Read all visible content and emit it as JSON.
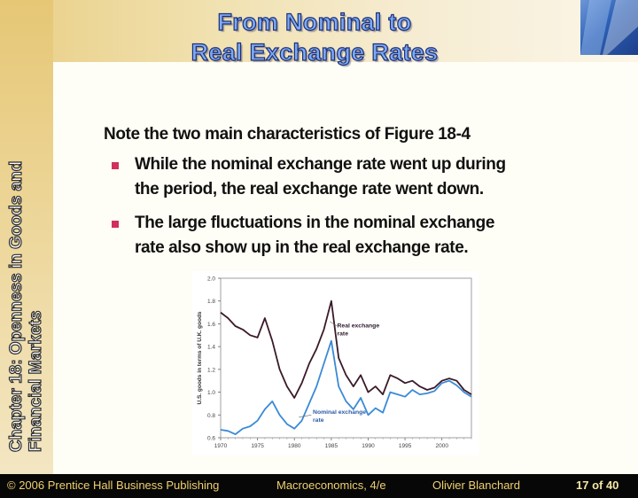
{
  "title": {
    "line1": "From Nominal to",
    "line2": "Real Exchange Rates"
  },
  "side_label": "Chapter 18: Openness in Goods and Financial Markets",
  "content": {
    "intro": "Note the two main characteristics of Figure 18-4",
    "bullets": [
      {
        "line1": "While the nominal exchange rate went up during",
        "line2": "the period, the real exchange rate went down."
      },
      {
        "line1": "The large fluctuations in the nominal exchange",
        "line2": "rate also show up in the real exchange rate."
      }
    ],
    "bullet_color": "#d0305a"
  },
  "chart_data": {
    "type": "line",
    "ylabel": "U.S. goods in terms of U.K. goods",
    "ylim": [
      0.6,
      2.0
    ],
    "y_ticks": [
      "0.6",
      "0.8",
      "1.0",
      "1.2",
      "1.4",
      "1.6",
      "1.8",
      "2.0"
    ],
    "xlim": [
      1970,
      2004
    ],
    "x_ticks": [
      "1970",
      "1975",
      "1980",
      "1985",
      "1990",
      "1995",
      "2000"
    ],
    "series": [
      {
        "name": "Real exchange rate",
        "color": "#3a1a2a",
        "x": [
          1970,
          1971,
          1972,
          1973,
          1974,
          1975,
          1976,
          1977,
          1978,
          1979,
          1980,
          1981,
          1982,
          1983,
          1984,
          1985,
          1986,
          1987,
          1988,
          1989,
          1990,
          1991,
          1992,
          1993,
          1994,
          1995,
          1996,
          1997,
          1998,
          1999,
          2000,
          2001,
          2002,
          2003,
          2004
        ],
        "values": [
          1.7,
          1.65,
          1.58,
          1.55,
          1.5,
          1.48,
          1.65,
          1.45,
          1.2,
          1.05,
          0.95,
          1.08,
          1.25,
          1.38,
          1.55,
          1.8,
          1.3,
          1.15,
          1.05,
          1.15,
          1.0,
          1.05,
          0.98,
          1.15,
          1.12,
          1.08,
          1.1,
          1.05,
          1.02,
          1.04,
          1.1,
          1.12,
          1.1,
          1.02,
          0.98
        ]
      },
      {
        "name": "Nominal exchange rate",
        "color": "#3a8ad6",
        "x": [
          1970,
          1971,
          1972,
          1973,
          1974,
          1975,
          1976,
          1977,
          1978,
          1979,
          1980,
          1981,
          1982,
          1983,
          1984,
          1985,
          1986,
          1987,
          1988,
          1989,
          1990,
          1991,
          1992,
          1993,
          1994,
          1995,
          1996,
          1997,
          1998,
          1999,
          2000,
          2001,
          2002,
          2003,
          2004
        ],
        "values": [
          0.67,
          0.66,
          0.63,
          0.68,
          0.7,
          0.75,
          0.85,
          0.92,
          0.8,
          0.72,
          0.68,
          0.75,
          0.9,
          1.05,
          1.25,
          1.45,
          1.05,
          0.92,
          0.85,
          0.95,
          0.8,
          0.86,
          0.82,
          1.0,
          0.98,
          0.96,
          1.02,
          0.98,
          0.99,
          1.01,
          1.08,
          1.1,
          1.06,
          1.0,
          0.96
        ]
      }
    ],
    "annotations": [
      {
        "text_line1": "Real exchange",
        "text_line2": "rate"
      },
      {
        "text_line1": "Nominal exchange",
        "text_line2": "rate"
      }
    ]
  },
  "footer": {
    "copyright": "© 2006 Prentice Hall Business Publishing",
    "book": "Macroeconomics, 4/e",
    "author": "Olivier Blanchard",
    "page": "17 of 40"
  }
}
